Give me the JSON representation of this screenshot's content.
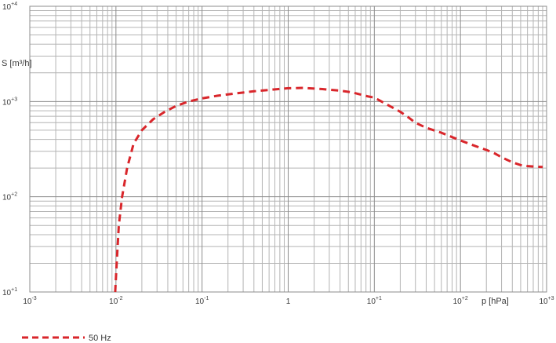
{
  "chart_data": {
    "type": "line",
    "x_scale": "log",
    "y_scale": "log",
    "xlim": [
      0.001,
      1000
    ],
    "ylim": [
      10,
      10000
    ],
    "grid": true,
    "xlabel": "p [hPa]",
    "ylabel": "S [m³/h]",
    "x_ticks": [
      {
        "base": "10",
        "exp": "-3",
        "value": 0.001
      },
      {
        "base": "10",
        "exp": "-2",
        "value": 0.01
      },
      {
        "base": "10",
        "exp": "-1",
        "value": 0.1
      },
      {
        "base": "1",
        "exp": "",
        "value": 1
      },
      {
        "base": "10",
        "exp": "+1",
        "value": 10
      },
      {
        "base": "10",
        "exp": "+2",
        "value": 100
      },
      {
        "base": "10",
        "exp": "+3",
        "value": 1000
      }
    ],
    "y_ticks": [
      {
        "base": "10",
        "exp": "+1",
        "value": 10
      },
      {
        "base": "10",
        "exp": "+2",
        "value": 100
      },
      {
        "base": "10",
        "exp": "+3",
        "value": 1000
      },
      {
        "base": "10",
        "exp": "+4",
        "value": 10000
      }
    ],
    "legend_position": "bottom-left",
    "series": [
      {
        "name": "50 Hz",
        "color": "#d9262b",
        "style": "dashed",
        "x": [
          0.0098,
          0.0102,
          0.0108,
          0.0118,
          0.0135,
          0.016,
          0.02,
          0.027,
          0.037,
          0.05,
          0.07,
          0.1,
          0.15,
          0.25,
          0.4,
          0.7,
          1,
          1.5,
          2.5,
          4,
          5.5,
          7,
          8.5,
          10,
          15,
          20,
          25,
          30,
          40,
          60,
          100,
          150,
          200,
          250,
          300,
          400,
          500,
          600,
          900
        ],
        "y": [
          10,
          20,
          50,
          100,
          200,
          360,
          500,
          650,
          780,
          900,
          1000,
          1080,
          1150,
          1220,
          1280,
          1340,
          1380,
          1390,
          1350,
          1300,
          1250,
          1180,
          1130,
          1100,
          900,
          780,
          680,
          600,
          530,
          470,
          390,
          340,
          310,
          285,
          260,
          230,
          215,
          210,
          205
        ]
      }
    ]
  }
}
